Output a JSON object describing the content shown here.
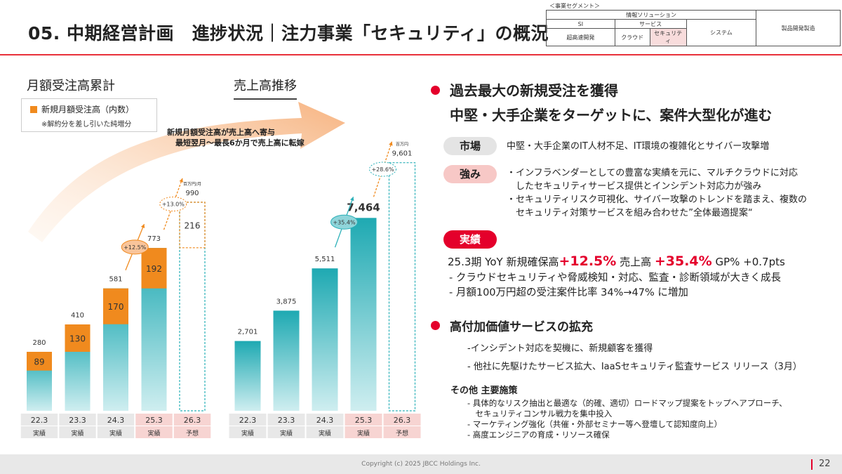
{
  "header": {
    "title": "05. 中期経営計画　進捗状況｜注力事業「セキュリティ」の概況",
    "segment_caption": "＜事業セグメント＞",
    "segment_table": {
      "info_solution": "情報ソリューション",
      "si": "SI",
      "service": "サービス",
      "system": "システム",
      "product_dev": "製品開発製造",
      "high_speed_dev": "超高速開発",
      "cloud": "クラウド",
      "security": "セキュリティ"
    }
  },
  "left_section": {
    "title": "月額受注高累計",
    "legend_label": "新規月額受注高（内数）",
    "legend_note": "※解約分を差し引いた純増分",
    "arrow_note_1": "新規月額受注高が売上高へ寄与",
    "arrow_note_2": "最短翌月～最長6か月で売上高に転嫁"
  },
  "right_section": {
    "title": "売上高推移"
  },
  "chart_data": [
    {
      "type": "bar",
      "title": "月額受注高累計",
      "unit": "百万円/月",
      "categories": [
        "22.3",
        "23.3",
        "24.3",
        "25.3",
        "26.3"
      ],
      "category_sublabels": [
        "実績",
        "実績",
        "実績",
        "実績",
        "予想"
      ],
      "series": [
        {
          "name": "月額受注高累計",
          "values": [
            280,
            410,
            581,
            773,
            990
          ],
          "color": "#2ab0b8"
        },
        {
          "name": "新規月額受注高（内数）",
          "values": [
            89,
            130,
            170,
            192,
            216
          ],
          "color": "#f08a1e"
        }
      ],
      "growth_labels": [
        {
          "between": [
            "24.3",
            "25.3"
          ],
          "label": "+12.5%"
        },
        {
          "between": [
            "25.3",
            "26.3"
          ],
          "label": "+13.0%"
        }
      ],
      "forecast_category": "26.3",
      "highlight_category": "25.3"
    },
    {
      "type": "bar",
      "title": "売上高推移",
      "unit": "百万円",
      "categories": [
        "22.3",
        "23.3",
        "24.3",
        "25.3",
        "26.3"
      ],
      "category_sublabels": [
        "実績",
        "実績",
        "実績",
        "実績",
        "予想"
      ],
      "series": [
        {
          "name": "売上高",
          "values": [
            2701,
            3875,
            5511,
            7464,
            9601
          ],
          "color": "#2ab0b8"
        }
      ],
      "value_labels": [
        "2,701",
        "3,875",
        "5,511",
        "7,464",
        "9,601"
      ],
      "growth_labels": [
        {
          "between": [
            "24.3",
            "25.3"
          ],
          "label": "+35.4%"
        },
        {
          "between": [
            "25.3",
            "26.3"
          ],
          "label": "+28.6%"
        }
      ],
      "forecast_category": "26.3",
      "highlight_category": "25.3"
    }
  ],
  "right_panel": {
    "headline_1": "過去最大の新規受注を獲得",
    "headline_2": "中堅・大手企業をターゲットに、案件大型化が進む",
    "market_tag": "市場",
    "market_text": "中堅・大手企業のIT人材不足、IT環境の複雑化とサイバー攻撃増",
    "strength_tag": "強み",
    "strength_lines": [
      "・インフラベンダーとしての豊富な実績を元に、マルチクラウドに対応",
      "　したセキュリティサービス提供とインシデント対応力が強み",
      "・セキュリティリスク可視化、サイバー攻撃のトレンドを踏まえ、複数の",
      "　セキュリティ対策サービスを組み合わせた”全体最適提案“"
    ],
    "results_tag": "実績",
    "results_prefix": "25.3期 YoY  新規確保高",
    "results_new_pct": "+12.5%",
    "results_sales_label": "  売上高 ",
    "results_sales_pct": "+35.4%",
    "results_gp": "  GP% +0.7pts",
    "results_lines": [
      "- クラウドセキュリティや脅威検知・対応、監査・診断領域が大きく成長",
      "- 月額100万円超の受注案件比率 34%→47% に増加"
    ],
    "high_value_title": "高付加価値サービスの拡充",
    "high_value_lines": [
      "-インシデント対応を契機に、新規顧客を獲得",
      "- 他社に先駆けたサービス拡大、IaaSセキュリティ監査サービス リリース（3月）"
    ],
    "others_title": "その他  主要施策",
    "others_lines": [
      "- 具体的なリスク抽出と最適な（的確、適切）ロードマップ提案をトップへアプローチ、",
      "　セキュリティコンサル戦力を集中投入",
      "- マーケティング強化（共催・外部セミナー等へ登壇して認知度向上）",
      "- 高度エンジニアの育成・リソース確保"
    ]
  },
  "footer": {
    "copyright": "Copyright (c) 2025 JBCC Holdings Inc.",
    "page": "22"
  }
}
